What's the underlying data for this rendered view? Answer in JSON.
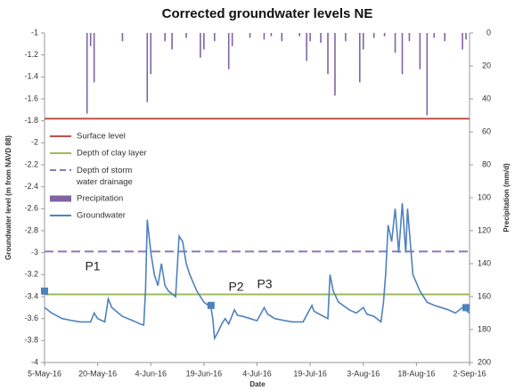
{
  "chart_data": {
    "type": "line",
    "title": "Corrected groundwater levels NE",
    "x_label": "Date",
    "y_label": "Groundwater level (m from NAVD 88)",
    "y2_label": "Precipitation (mm/d)",
    "xlim": [
      0,
      120
    ],
    "xticks": [
      {
        "value": 0,
        "label": "5-May-16"
      },
      {
        "value": 15,
        "label": "20-May-16"
      },
      {
        "value": 30,
        "label": "4-Jun-16"
      },
      {
        "value": 45,
        "label": "19-Jun-16"
      },
      {
        "value": 60,
        "label": "4-Jul-16"
      },
      {
        "value": 75,
        "label": "19-Jul-16"
      },
      {
        "value": 90,
        "label": "3-Aug-16"
      },
      {
        "value": 105,
        "label": "18-Aug-16"
      },
      {
        "value": 120,
        "label": "2-Sep-16"
      }
    ],
    "ylim": [
      -4,
      -1
    ],
    "yticks": [
      -4,
      -3.8,
      -3.6,
      -3.4,
      -3.2,
      -3,
      -2.8,
      -2.6,
      -2.4,
      -2.2,
      -2,
      -1.8,
      -1.6,
      -1.4,
      -1.2,
      -1
    ],
    "y2lim": [
      0,
      200
    ],
    "y2_inverted": true,
    "y2ticks": [
      0,
      20,
      40,
      60,
      80,
      100,
      120,
      140,
      160,
      180,
      200
    ],
    "grid": false,
    "legend": "upper-left",
    "reference_lines": [
      {
        "name": "Surface level",
        "color": "#c0504d",
        "value": -1.78,
        "dashed": false
      },
      {
        "name": "Depth of clay layer",
        "color": "#9bbb59",
        "value": -3.38,
        "dashed": false
      },
      {
        "name": "Depth of storm water drainage",
        "color": "#8a78b8",
        "value": -2.99,
        "dashed": true
      }
    ],
    "series": [
      {
        "name": "Precipitation",
        "type": "bar",
        "axis": "y2",
        "color": "#8064a2",
        "x": [
          12,
          13,
          14,
          22,
          29,
          30,
          34,
          36,
          40,
          44,
          45,
          48,
          52,
          53,
          58,
          62,
          64,
          67,
          72,
          74,
          75,
          78,
          80,
          82,
          85,
          89,
          90,
          93,
          96,
          99,
          101,
          103,
          106,
          108,
          110,
          113,
          118,
          119
        ],
        "values": [
          49,
          8,
          30,
          5,
          42,
          25,
          5,
          10,
          3,
          15,
          10,
          5,
          22,
          8,
          3,
          4,
          2,
          5,
          2,
          17,
          5,
          6,
          25,
          38,
          5,
          30,
          10,
          3,
          2,
          12,
          25,
          5,
          22,
          50,
          3,
          5,
          10,
          4
        ]
      },
      {
        "name": "Groundwater",
        "type": "line",
        "color": "#4f81bd",
        "x": [
          0,
          2,
          5,
          8,
          10,
          13,
          14,
          15,
          17,
          18,
          19,
          22,
          25,
          27,
          28,
          28.5,
          29,
          30,
          31,
          32,
          33,
          34,
          35,
          37,
          38,
          39,
          40,
          41,
          43,
          45,
          47,
          47.5,
          48,
          49,
          50,
          51,
          52,
          53.6,
          54.5,
          56,
          58,
          60,
          62,
          63,
          65,
          68,
          70,
          73,
          75.5,
          76,
          77,
          80,
          80.6,
          81.5,
          83,
          86,
          88,
          90,
          91,
          93,
          95,
          95.7,
          96.3,
          97,
          98,
          99,
          100,
          101,
          102,
          102.5,
          104,
          106,
          108,
          110,
          112,
          114,
          116,
          118,
          120
        ],
        "values": [
          -3.5,
          -3.55,
          -3.6,
          -3.62,
          -3.63,
          -3.63,
          -3.55,
          -3.6,
          -3.63,
          -3.42,
          -3.5,
          -3.58,
          -3.62,
          -3.65,
          -3.66,
          -3.35,
          -2.7,
          -3.0,
          -3.2,
          -3.3,
          -3.1,
          -3.3,
          -3.35,
          -3.4,
          -2.85,
          -2.9,
          -3.1,
          -3.2,
          -3.35,
          -3.45,
          -3.5,
          -3.6,
          -3.78,
          -3.72,
          -3.65,
          -3.6,
          -3.65,
          -3.52,
          -3.57,
          -3.58,
          -3.6,
          -3.62,
          -3.5,
          -3.56,
          -3.6,
          -3.62,
          -3.63,
          -3.63,
          -3.48,
          -3.53,
          -3.55,
          -3.6,
          -3.2,
          -3.35,
          -3.45,
          -3.52,
          -3.55,
          -3.5,
          -3.56,
          -3.58,
          -3.63,
          -3.45,
          -3.2,
          -2.75,
          -2.9,
          -2.6,
          -3.0,
          -2.55,
          -3.0,
          -2.6,
          -3.2,
          -3.35,
          -3.45,
          -3.48,
          -3.5,
          -3.52,
          -3.55,
          -3.5,
          -3.55
        ]
      }
    ],
    "measurements": {
      "color": "#4f81bd",
      "x": [
        0,
        47,
        119
      ],
      "values": [
        -3.35,
        -3.48,
        -3.5
      ]
    },
    "annotations": [
      "P1",
      "P2",
      "P3"
    ]
  }
}
